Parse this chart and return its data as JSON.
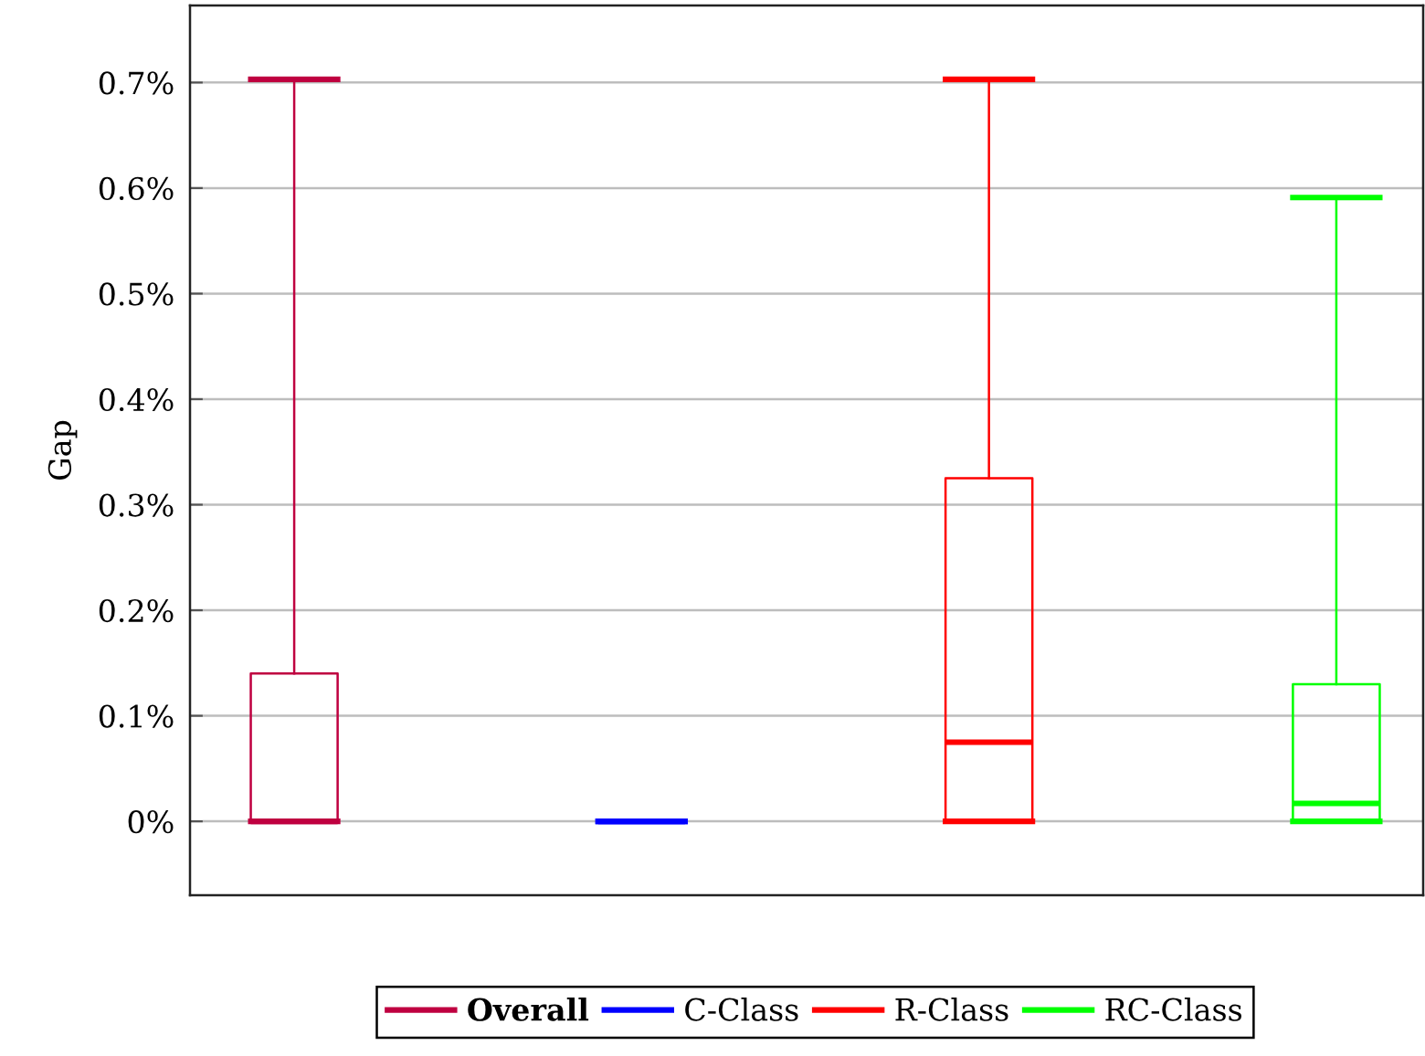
{
  "chart_data": {
    "type": "box",
    "ylabel": "Gap",
    "categories": [
      null,
      null,
      null,
      null
    ],
    "series": [
      {
        "name": "Overall",
        "color": "#bf0040",
        "boxes": [
          {
            "low": 0,
            "q1": 0,
            "median": 0,
            "q3": 0.14,
            "high": 0.703
          },
          null,
          null,
          null
        ]
      },
      {
        "name": "C-Class",
        "color": "#0000ff",
        "boxes": [
          null,
          {
            "low": 0,
            "q1": 0,
            "median": 0,
            "q3": 0,
            "high": 0
          },
          null,
          null
        ]
      },
      {
        "name": "R-Class",
        "color": "#ff0000",
        "boxes": [
          null,
          null,
          {
            "low": 0,
            "q1": 0,
            "median": 0.075,
            "q3": 0.325,
            "high": 0.703
          },
          null
        ]
      },
      {
        "name": "RC-Class",
        "color": "#00ff00",
        "boxes": [
          null,
          null,
          null,
          {
            "low": 0,
            "q1": 0,
            "median": 0.017,
            "q3": 0.13,
            "high": 0.591
          }
        ]
      }
    ],
    "ylim": [
      -0.07,
      0.773
    ],
    "yticks": [
      {
        "value": 0,
        "label": "0%"
      },
      {
        "value": 0.1,
        "label": "0.1%"
      },
      {
        "value": 0.2,
        "label": "0.2%"
      },
      {
        "value": 0.3,
        "label": "0.3%"
      },
      {
        "value": 0.4,
        "label": "0.4%"
      },
      {
        "value": 0.5,
        "label": "0.5%"
      },
      {
        "value": 0.6,
        "label": "0.6%"
      },
      {
        "value": 0.7,
        "label": "0.7%"
      }
    ],
    "grid": "y",
    "legend": "bottom",
    "tick_labels": "y"
  }
}
